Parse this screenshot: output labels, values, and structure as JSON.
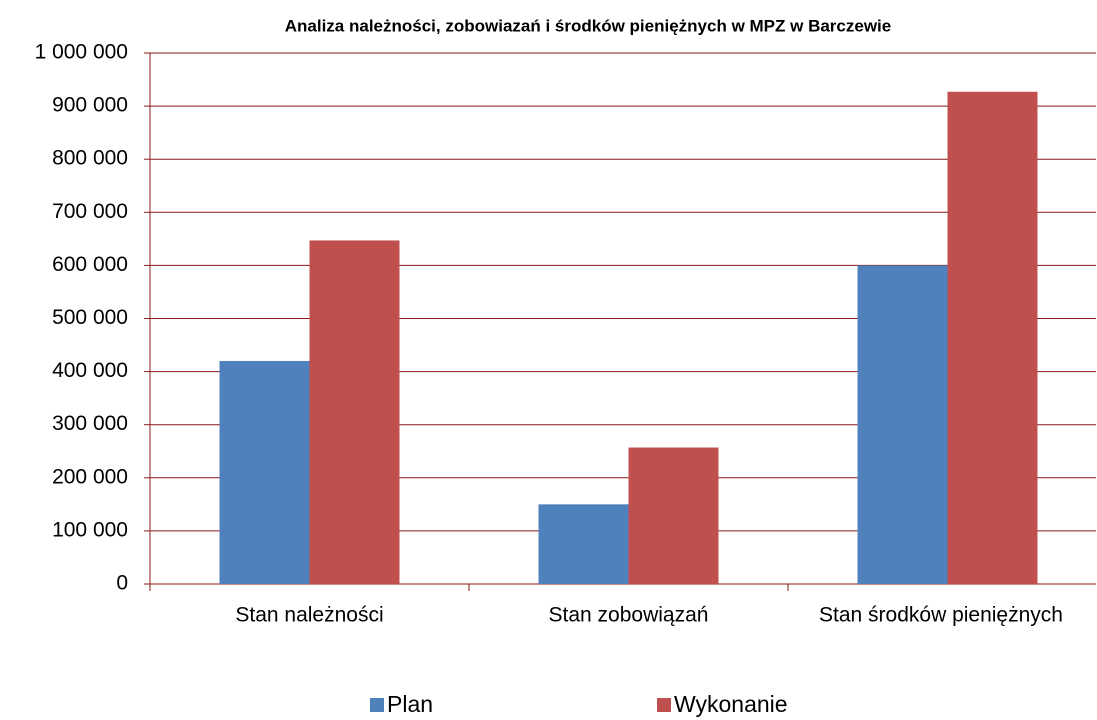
{
  "chart_data": {
    "type": "bar",
    "title": "Analiza należności, zobowiazań i środków pieniężnych w MPZ w Barczewie",
    "categories": [
      "Stan należności",
      "Stan zobowiązań",
      "Stan środków pieniężnych"
    ],
    "series": [
      {
        "name": "Plan",
        "color": "#4f81bd",
        "values": [
          420000,
          150000,
          600000
        ]
      },
      {
        "name": "Wykonanie",
        "color": "#c0504d",
        "values": [
          647000,
          257000,
          927000
        ]
      }
    ],
    "ylim": [
      0,
      1000000
    ],
    "yticks": [
      0,
      {
        "value": 100000,
        "label": "100 000"
      },
      {
        "value": 200000,
        "label": "200 000"
      },
      {
        "value": 300000,
        "label": "300 000"
      },
      {
        "value": 400000,
        "label": "400 000"
      },
      {
        "value": 500000,
        "label": "500 000"
      },
      {
        "value": 600000,
        "label": "600 000"
      },
      {
        "value": 700000,
        "label": "700 000"
      },
      {
        "value": 800000,
        "label": "800 000"
      },
      {
        "value": 900000,
        "label": "900 000"
      },
      {
        "value": 1000000,
        "label": "1 000 000"
      }
    ],
    "grid": true
  }
}
